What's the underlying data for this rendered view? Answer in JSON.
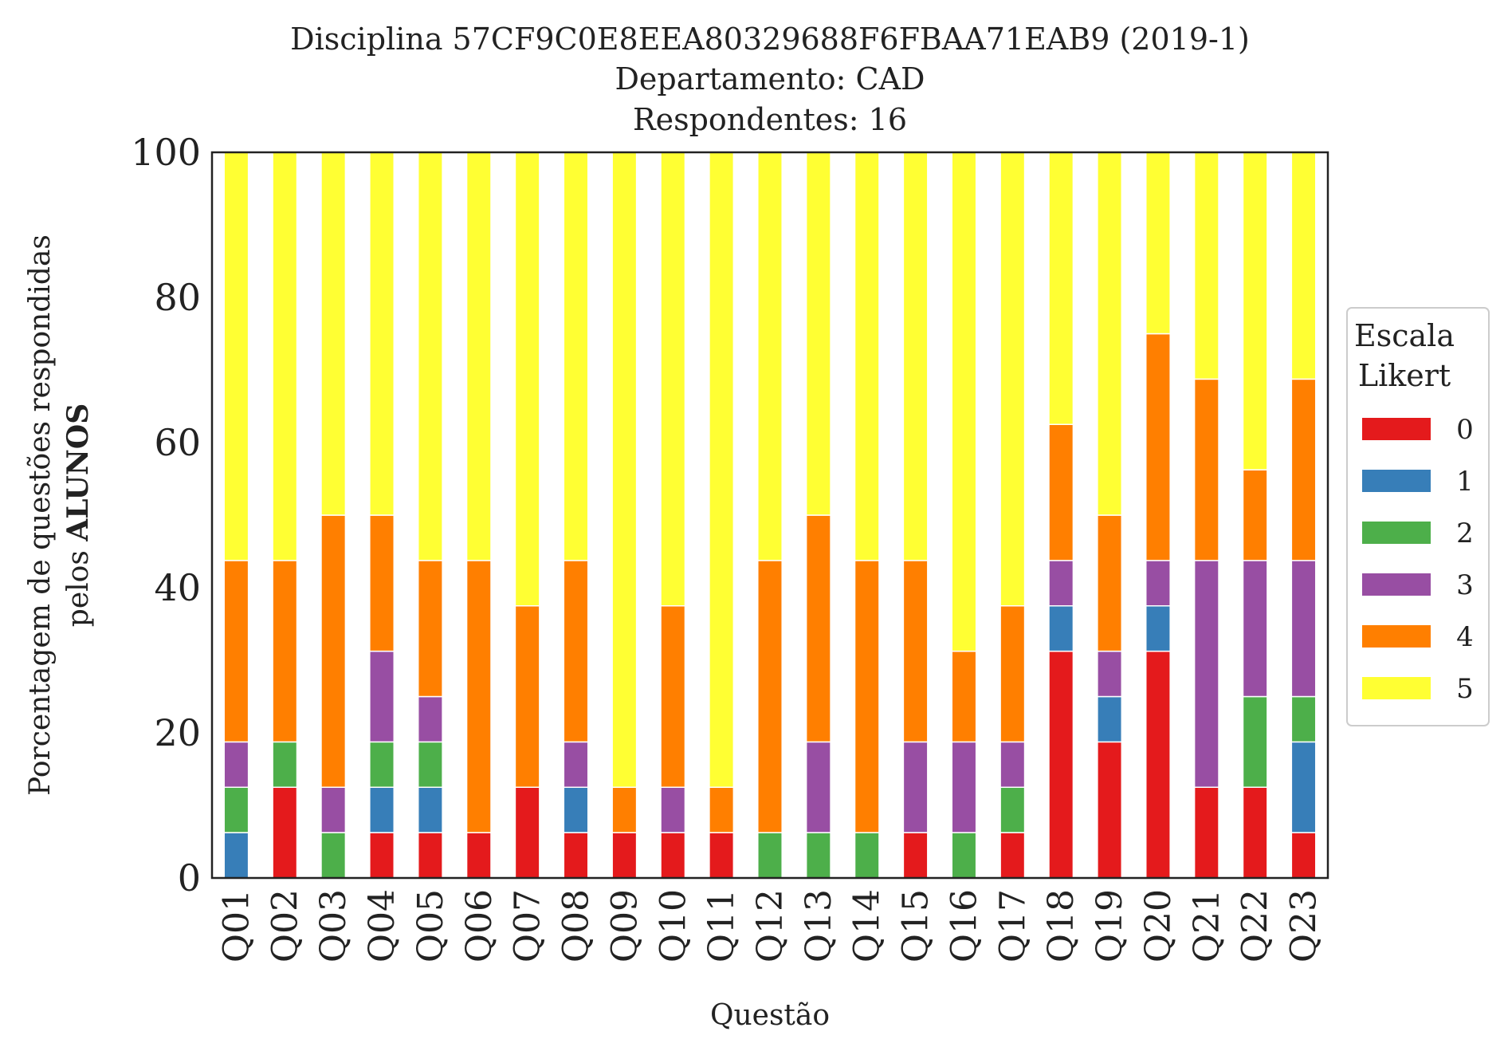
{
  "chart_data": {
    "type": "bar",
    "stacked": true,
    "title_lines": [
      "Disciplina 57CF9C0E8EEA80329688F6FBAA71EAB9 (2019-1)",
      "Departamento: CAD",
      "Respondentes: 16"
    ],
    "ylabel_line1": "Porcentagem de questões respondidas",
    "ylabel_line2_prefix": "pelos ",
    "ylabel_line2_bold": "ALUNOS",
    "xlabel": "Questão",
    "ylim": [
      0,
      100
    ],
    "yticks": [
      0,
      20,
      40,
      60,
      80,
      100
    ],
    "grid": false,
    "categories": [
      "Q01",
      "Q02",
      "Q03",
      "Q04",
      "Q05",
      "Q06",
      "Q07",
      "Q08",
      "Q09",
      "Q10",
      "Q11",
      "Q12",
      "Q13",
      "Q14",
      "Q15",
      "Q16",
      "Q17",
      "Q18",
      "Q19",
      "Q20",
      "Q21",
      "Q22",
      "Q23"
    ],
    "legend": {
      "title_lines": [
        "Escala",
        "Likert"
      ],
      "placement": "right"
    },
    "series": [
      {
        "name": "0",
        "color": "#e41a1c",
        "values": [
          0,
          12.5,
          0,
          6.25,
          6.25,
          6.25,
          12.5,
          6.25,
          6.25,
          6.25,
          6.25,
          0,
          0,
          0,
          6.25,
          0,
          6.25,
          31.25,
          18.75,
          31.25,
          12.5,
          12.5,
          6.25
        ]
      },
      {
        "name": "1",
        "color": "#377eb8",
        "values": [
          6.25,
          0,
          0,
          6.25,
          6.25,
          0,
          0,
          6.25,
          0,
          0,
          0,
          0,
          0,
          0,
          0,
          0,
          0,
          6.25,
          6.25,
          6.25,
          0,
          0,
          12.5
        ]
      },
      {
        "name": "2",
        "color": "#4daf4a",
        "values": [
          6.25,
          6.25,
          6.25,
          6.25,
          6.25,
          0,
          0,
          0,
          0,
          0,
          0,
          6.25,
          6.25,
          6.25,
          0,
          6.25,
          6.25,
          0,
          0,
          0,
          0,
          12.5,
          6.25
        ]
      },
      {
        "name": "3",
        "color": "#984ea3",
        "values": [
          6.25,
          0,
          6.25,
          12.5,
          6.25,
          0,
          0,
          6.25,
          0,
          6.25,
          0,
          0,
          12.5,
          0,
          12.5,
          12.5,
          6.25,
          6.25,
          6.25,
          6.25,
          31.25,
          18.75,
          18.75
        ]
      },
      {
        "name": "4",
        "color": "#ff7f00",
        "values": [
          25,
          25,
          37.5,
          18.75,
          18.75,
          37.5,
          25,
          25,
          6.25,
          25,
          6.25,
          37.5,
          31.25,
          37.5,
          25,
          12.5,
          18.75,
          18.75,
          18.75,
          31.25,
          25,
          12.5,
          25
        ]
      },
      {
        "name": "5",
        "color": "#ffff33",
        "values": [
          56.25,
          56.25,
          50,
          50,
          56.25,
          56.25,
          62.5,
          56.25,
          87.5,
          62.5,
          87.5,
          56.25,
          50,
          56.25,
          56.25,
          68.75,
          62.5,
          37.5,
          50,
          25,
          31.25,
          43.75,
          31.25
        ]
      }
    ]
  }
}
